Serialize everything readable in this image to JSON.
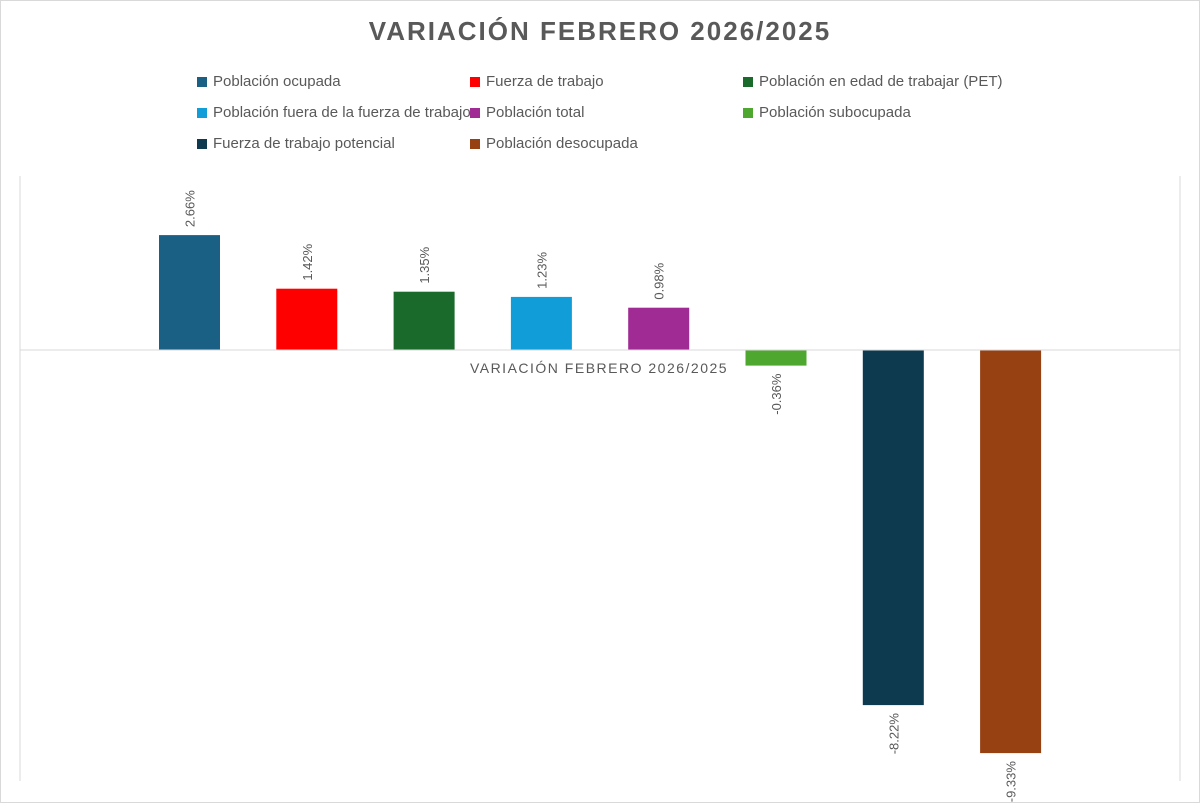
{
  "chart_data": {
    "type": "bar",
    "title": "VARIACIÓN FEBRERO 2026/2025",
    "xlabel": "VARIACIÓN FEBRERO 2026/2025",
    "ylabel": "",
    "ylim": [
      -10,
      4
    ],
    "grid": false,
    "legend_position": "top",
    "categories": [
      "VARIACIÓN FEBRERO 2026/2025"
    ],
    "series": [
      {
        "name": "Población ocupada",
        "values": [
          2.66
        ],
        "label": "2.66%",
        "color": "#1a6085"
      },
      {
        "name": "Fuerza de trabajo",
        "values": [
          1.42
        ],
        "label": "1.42%",
        "color": "#ff0000"
      },
      {
        "name": "Población en edad de trabajar (PET)",
        "values": [
          1.35
        ],
        "label": "1.35%",
        "color": "#1a6b2b"
      },
      {
        "name": "Población fuera de la fuerza de trabajo",
        "values": [
          1.23
        ],
        "label": "1.23%",
        "color": "#119ed8"
      },
      {
        "name": "Población total",
        "values": [
          0.98
        ],
        "label": "0.98%",
        "color": "#a02b94"
      },
      {
        "name": "Población subocupada",
        "values": [
          -0.36
        ],
        "label": "-0.36%",
        "color": "#4ea72e"
      },
      {
        "name": "Fuerza de trabajo potencial",
        "values": [
          -8.22
        ],
        "label": "-8.22%",
        "color": "#0e3a50"
      },
      {
        "name": "Población desocupada",
        "values": [
          -9.33
        ],
        "label": "-9.33%",
        "color": "#974012"
      }
    ]
  }
}
